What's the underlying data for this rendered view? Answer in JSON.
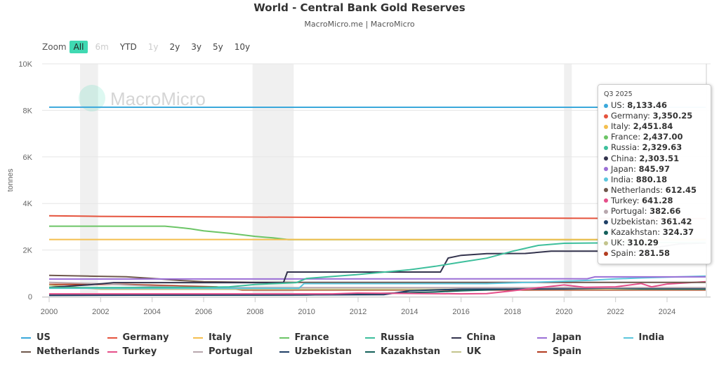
{
  "title": "World - Central Bank Gold Reserves",
  "subtitle": "MacroMicro.me | MacroMicro",
  "watermark": "MacroMicro",
  "zoom": {
    "label": "Zoom",
    "buttons": [
      {
        "label": "All",
        "state": "active"
      },
      {
        "label": "6m",
        "state": "disabled"
      },
      {
        "label": "YTD",
        "state": "normal"
      },
      {
        "label": "1y",
        "state": "disabled"
      },
      {
        "label": "2y",
        "state": "normal"
      },
      {
        "label": "3y",
        "state": "normal"
      },
      {
        "label": "5y",
        "state": "normal"
      },
      {
        "label": "10y",
        "state": "normal"
      }
    ]
  },
  "tooltip": {
    "header": "Q3 2025",
    "rows": [
      {
        "name": "US",
        "value": "8,133.46"
      },
      {
        "name": "Germany",
        "value": "3,350.25"
      },
      {
        "name": "Italy",
        "value": "2,451.84"
      },
      {
        "name": "France",
        "value": "2,437.00"
      },
      {
        "name": "Russia",
        "value": "2,329.63"
      },
      {
        "name": "China",
        "value": "2,303.51"
      },
      {
        "name": "Japan",
        "value": "845.97"
      },
      {
        "name": "India",
        "value": "880.18"
      },
      {
        "name": "Netherlands",
        "value": "612.45"
      },
      {
        "name": "Turkey",
        "value": "641.28"
      },
      {
        "name": "Portugal",
        "value": "382.66"
      },
      {
        "name": "Uzbekistan",
        "value": "361.42"
      },
      {
        "name": "Kazakhstan",
        "value": "324.37"
      },
      {
        "name": "UK",
        "value": "310.29"
      },
      {
        "name": "Spain",
        "value": "281.58"
      }
    ]
  },
  "chart_data": {
    "type": "line",
    "title": "World - Central Bank Gold Reserves",
    "subtitle": "MacroMicro.me | MacroMicro",
    "ylabel": "tonnes",
    "xlabel": "",
    "xlim": [
      2000,
      2025.6
    ],
    "ylim": [
      0,
      10000
    ],
    "x_ticks": [
      "2000",
      "2002",
      "2004",
      "2006",
      "2008",
      "2010",
      "2012",
      "2014",
      "2016",
      "2018",
      "2020",
      "2022",
      "2024"
    ],
    "y_ticks": [
      {
        "v": 0,
        "label": "0"
      },
      {
        "v": 2000,
        "label": "2K"
      },
      {
        "v": 4000,
        "label": "4K"
      },
      {
        "v": 6000,
        "label": "6K"
      },
      {
        "v": 8000,
        "label": "8K"
      },
      {
        "v": 10000,
        "label": "10K"
      }
    ],
    "grid": true,
    "legend_position": "bottom",
    "shaded_periods": [
      [
        2001.2,
        2001.9
      ],
      [
        2007.9,
        2009.5
      ],
      [
        2020.0,
        2020.3
      ]
    ],
    "series": [
      {
        "name": "US",
        "color": "#3aa8db",
        "points": [
          [
            2000,
            8137
          ],
          [
            2010,
            8134
          ],
          [
            2025.5,
            8133
          ]
        ]
      },
      {
        "name": "Germany",
        "color": "#e5533d",
        "points": [
          [
            2000,
            3469
          ],
          [
            2002,
            3446
          ],
          [
            2008,
            3417
          ],
          [
            2012,
            3396
          ],
          [
            2017,
            3374
          ],
          [
            2025.5,
            3350
          ]
        ]
      },
      {
        "name": "Italy",
        "color": "#f4bf4f",
        "points": [
          [
            2000,
            2452
          ],
          [
            2025.5,
            2452
          ]
        ]
      },
      {
        "name": "France",
        "color": "#6cc566",
        "points": [
          [
            2000,
            3025
          ],
          [
            2004.5,
            3025
          ],
          [
            2005.2,
            2950
          ],
          [
            2005.5,
            2910
          ],
          [
            2006,
            2825
          ],
          [
            2007,
            2720
          ],
          [
            2008,
            2586
          ],
          [
            2008.7,
            2520
          ],
          [
            2009.3,
            2450
          ],
          [
            2025.5,
            2437
          ]
        ]
      },
      {
        "name": "Russia",
        "color": "#3dbf9c",
        "points": [
          [
            2000,
            384
          ],
          [
            2003,
            390
          ],
          [
            2006,
            400
          ],
          [
            2007,
            420
          ],
          [
            2008,
            520
          ],
          [
            2009,
            570
          ],
          [
            2009.6,
            600
          ],
          [
            2010,
            780
          ],
          [
            2012,
            950
          ],
          [
            2014,
            1150
          ],
          [
            2015,
            1300
          ],
          [
            2016,
            1480
          ],
          [
            2017,
            1650
          ],
          [
            2018,
            1950
          ],
          [
            2019,
            2200
          ],
          [
            2020,
            2290
          ],
          [
            2021,
            2300
          ],
          [
            2025.5,
            2330
          ]
        ]
      },
      {
        "name": "China",
        "color": "#33334d",
        "points": [
          [
            2000,
            395
          ],
          [
            2001.5,
            500
          ],
          [
            2002.5,
            600
          ],
          [
            2009.1,
            600
          ],
          [
            2009.25,
            1054
          ],
          [
            2015.2,
            1054
          ],
          [
            2015.5,
            1658
          ],
          [
            2016,
            1770
          ],
          [
            2017,
            1842
          ],
          [
            2018.5,
            1852
          ],
          [
            2019.5,
            1948
          ],
          [
            2022.9,
            1948
          ],
          [
            2023.5,
            2100
          ],
          [
            2024.5,
            2264
          ],
          [
            2025.5,
            2300
          ]
        ]
      },
      {
        "name": "Japan",
        "color": "#9b6fd6",
        "points": [
          [
            2000,
            754
          ],
          [
            2020.9,
            765
          ],
          [
            2021.2,
            846
          ],
          [
            2025.5,
            846
          ]
        ]
      },
      {
        "name": "India",
        "color": "#5cc6dc",
        "points": [
          [
            2000,
            358
          ],
          [
            2009.7,
            358
          ],
          [
            2009.9,
            558
          ],
          [
            2017,
            558
          ],
          [
            2018,
            590
          ],
          [
            2019,
            620
          ],
          [
            2020,
            660
          ],
          [
            2021,
            700
          ],
          [
            2022,
            760
          ],
          [
            2023,
            800
          ],
          [
            2025.5,
            880
          ]
        ]
      },
      {
        "name": "Netherlands",
        "color": "#6e574b",
        "points": [
          [
            2000,
            912
          ],
          [
            2001.5,
            880
          ],
          [
            2003,
            850
          ],
          [
            2004,
            780
          ],
          [
            2005,
            700
          ],
          [
            2006,
            640
          ],
          [
            2008,
            612
          ],
          [
            2025.5,
            612
          ]
        ]
      },
      {
        "name": "Turkey",
        "color": "#e54f8a",
        "points": [
          [
            2000,
            116
          ],
          [
            2011,
            116
          ],
          [
            2012,
            150
          ],
          [
            2016,
            117
          ],
          [
            2017,
            130
          ],
          [
            2018,
            250
          ],
          [
            2019,
            380
          ],
          [
            2020,
            500
          ],
          [
            2020.8,
            400
          ],
          [
            2022,
            420
          ],
          [
            2023,
            560
          ],
          [
            2023.4,
            420
          ],
          [
            2024,
            540
          ],
          [
            2025.5,
            641
          ]
        ]
      },
      {
        "name": "Portugal",
        "color": "#b8a7ad",
        "points": [
          [
            2000,
            607
          ],
          [
            2002,
            550
          ],
          [
            2004,
            450
          ],
          [
            2006,
            383
          ],
          [
            2025.5,
            383
          ]
        ]
      },
      {
        "name": "Uzbekistan",
        "color": "#1f3f66",
        "points": [
          [
            2000,
            50
          ],
          [
            2013,
            80
          ],
          [
            2014,
            250
          ],
          [
            2016,
            320
          ],
          [
            2020,
            330
          ],
          [
            2022,
            370
          ],
          [
            2025.5,
            361
          ]
        ]
      },
      {
        "name": "Kazakhstan",
        "color": "#14605a",
        "points": [
          [
            2000,
            56
          ],
          [
            2010,
            67
          ],
          [
            2013,
            140
          ],
          [
            2015,
            200
          ],
          [
            2016,
            250
          ],
          [
            2018,
            320
          ],
          [
            2019,
            380
          ],
          [
            2021,
            380
          ],
          [
            2023,
            330
          ],
          [
            2025.5,
            324
          ]
        ]
      },
      {
        "name": "UK",
        "color": "#c3c48c",
        "points": [
          [
            2000,
            487
          ],
          [
            2001,
            400
          ],
          [
            2002,
            313
          ],
          [
            2025.5,
            310
          ]
        ]
      },
      {
        "name": "Spain",
        "color": "#b23b1f",
        "points": [
          [
            2000,
            523
          ],
          [
            2003,
            523
          ],
          [
            2005,
            457
          ],
          [
            2006.5,
            420
          ],
          [
            2007,
            350
          ],
          [
            2007.5,
            282
          ],
          [
            2025.5,
            282
          ]
        ]
      }
    ]
  }
}
